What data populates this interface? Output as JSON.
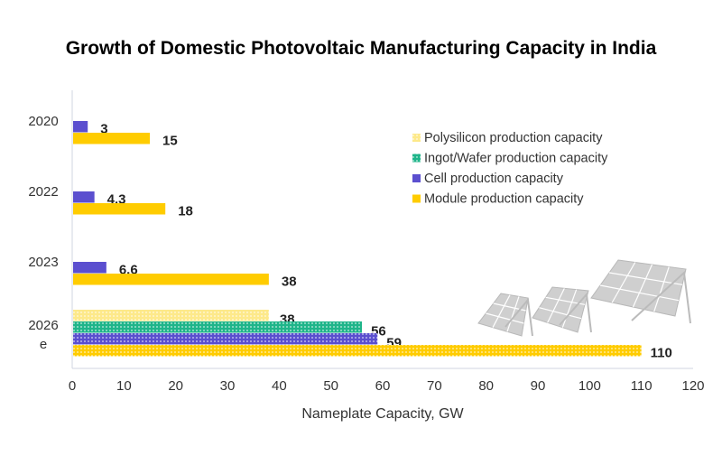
{
  "chart_data": {
    "type": "bar",
    "orientation": "horizontal",
    "title": "Growth of Domestic Photovoltaic Manufacturing Capacity in India",
    "xlabel": "Nameplate Capacity, GW",
    "ylabel": "",
    "xlim": [
      0,
      120
    ],
    "xticks": [
      "0",
      "10",
      "20",
      "30",
      "40",
      "50",
      "60",
      "70",
      "80",
      "90",
      "100",
      "110",
      "120"
    ],
    "grid": false,
    "legend_position": "right",
    "categories": [
      {
        "label": "2020",
        "label2": ""
      },
      {
        "label": "2022",
        "label2": ""
      },
      {
        "label": "2023",
        "label2": ""
      },
      {
        "label": "2026",
        "label2": "e"
      }
    ],
    "series": [
      {
        "name": "Polysilicon production capacity",
        "color": "#fde98a",
        "values": [
          null,
          null,
          null,
          38
        ],
        "labels": [
          "",
          "",
          "",
          "38"
        ]
      },
      {
        "name": "Ingot/Wafer production capacity",
        "color": "#1fb58a",
        "values": [
          null,
          null,
          null,
          56
        ],
        "labels": [
          "",
          "",
          "",
          "56"
        ]
      },
      {
        "name": "Cell production capacity",
        "color": "#5b4fcf",
        "values": [
          3,
          4.3,
          6.6,
          59
        ],
        "labels": [
          "3",
          "4.3",
          "6.6",
          "59"
        ]
      },
      {
        "name": "Module production capacity",
        "color": "#ffcc00",
        "values": [
          15,
          18,
          38,
          110
        ],
        "labels": [
          "15",
          "18",
          "38",
          "110"
        ]
      }
    ],
    "patterned_categories": [
      "2026"
    ]
  }
}
